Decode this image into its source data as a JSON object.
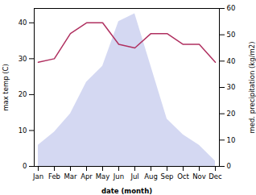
{
  "chart_data": {
    "type": "line",
    "categories": [
      "Jan",
      "Feb",
      "Mar",
      "Apr",
      "May",
      "Jun",
      "Jul",
      "Aug",
      "Sep",
      "Oct",
      "Nov",
      "Dec"
    ],
    "xlabel": "date (month)",
    "ylabel": "max temp (C)",
    "y2label": "med. precipitation (kg/m2)",
    "ylim": [
      0,
      44
    ],
    "yticks": [
      0,
      10,
      20,
      30,
      40
    ],
    "y2lim": [
      0,
      60
    ],
    "y2ticks": [
      0,
      10,
      20,
      30,
      40,
      50,
      60
    ],
    "series": [
      {
        "type": "area",
        "axis": "y2",
        "color": "#b0b8e8",
        "values": [
          8,
          13,
          20,
          32,
          38,
          55,
          58,
          38,
          18,
          12,
          8,
          2
        ]
      },
      {
        "type": "line",
        "color": "#b03060",
        "values": [
          29,
          30,
          37,
          40,
          40,
          34,
          33,
          37,
          37,
          34,
          34,
          29
        ]
      }
    ]
  }
}
